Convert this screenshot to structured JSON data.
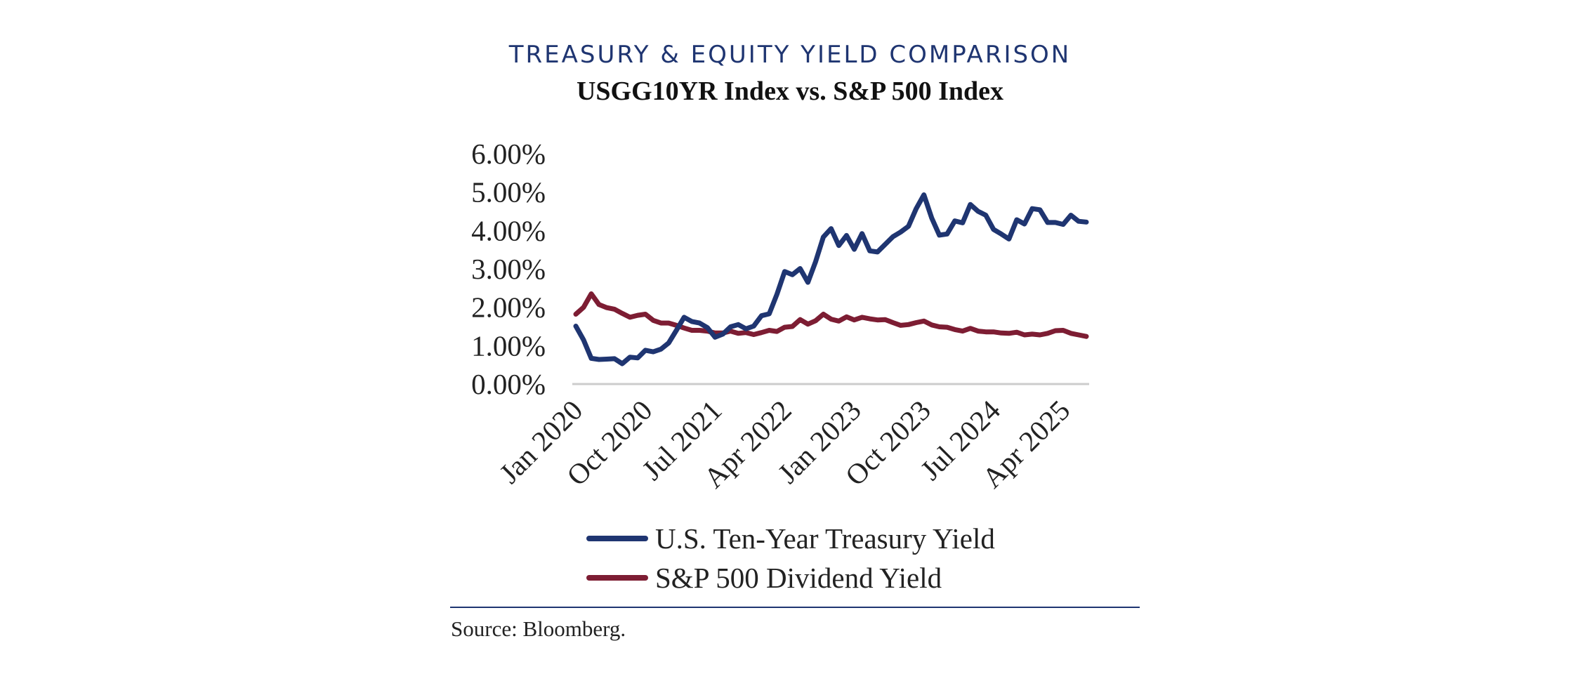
{
  "title": "TREASURY & EQUITY YIELD COMPARISON",
  "subtitle": "USGG10YR Index vs. S&P 500 Index",
  "source": "Source: Bloomberg.",
  "colors": {
    "treasury": "#1f3571",
    "dividend": "#7d1d33",
    "rule": "#1f3571",
    "axis": "#cccccc"
  },
  "chart_data": {
    "type": "line",
    "title": "TREASURY & EQUITY YIELD COMPARISON",
    "subtitle": "USGG10YR Index vs. S&P 500 Index",
    "xlabel": "",
    "ylabel": "",
    "ylim": [
      0,
      0.06
    ],
    "y_ticks": [
      "0.00%",
      "1.00%",
      "2.00%",
      "3.00%",
      "4.00%",
      "5.00%",
      "6.00%"
    ],
    "x_tick_labels": [
      "Jan 2020",
      "Oct 2020",
      "Jul 2021",
      "Apr 2022",
      "Jan 2023",
      "Oct 2023",
      "Jul 2024",
      "Apr 2025"
    ],
    "x": [
      "2020-01",
      "2020-02",
      "2020-03",
      "2020-04",
      "2020-05",
      "2020-06",
      "2020-07",
      "2020-08",
      "2020-09",
      "2020-10",
      "2020-11",
      "2020-12",
      "2021-01",
      "2021-02",
      "2021-03",
      "2021-04",
      "2021-05",
      "2021-06",
      "2021-07",
      "2021-08",
      "2021-09",
      "2021-10",
      "2021-11",
      "2021-12",
      "2022-01",
      "2022-02",
      "2022-03",
      "2022-04",
      "2022-05",
      "2022-06",
      "2022-07",
      "2022-08",
      "2022-09",
      "2022-10",
      "2022-11",
      "2022-12",
      "2023-01",
      "2023-02",
      "2023-03",
      "2023-04",
      "2023-05",
      "2023-06",
      "2023-07",
      "2023-08",
      "2023-09",
      "2023-10",
      "2023-11",
      "2023-12",
      "2024-01",
      "2024-02",
      "2024-03",
      "2024-04",
      "2024-05",
      "2024-06",
      "2024-07",
      "2024-08",
      "2024-09",
      "2024-10",
      "2024-11",
      "2024-12",
      "2025-01",
      "2025-02",
      "2025-03",
      "2025-04",
      "2025-05",
      "2025-06",
      "2025-07"
    ],
    "grid": false,
    "legend": "bottom",
    "series": [
      {
        "name": "U.S. Ten-Year Treasury Yield",
        "values": [
          0.0151,
          0.0115,
          0.0067,
          0.0064,
          0.0065,
          0.0066,
          0.0053,
          0.007,
          0.0068,
          0.0088,
          0.0084,
          0.0091,
          0.0107,
          0.014,
          0.0174,
          0.0163,
          0.0159,
          0.0147,
          0.0122,
          0.013,
          0.0149,
          0.0155,
          0.0144,
          0.0151,
          0.0178,
          0.0183,
          0.0234,
          0.0293,
          0.0285,
          0.0301,
          0.0265,
          0.0319,
          0.0383,
          0.0405,
          0.0361,
          0.0387,
          0.0351,
          0.0392,
          0.0347,
          0.0344,
          0.0364,
          0.0384,
          0.0396,
          0.0411,
          0.0457,
          0.0493,
          0.0433,
          0.0388,
          0.0391,
          0.0425,
          0.042,
          0.0468,
          0.045,
          0.044,
          0.0403,
          0.0391,
          0.0378,
          0.0428,
          0.0417,
          0.0457,
          0.0454,
          0.0421,
          0.0421,
          0.0416,
          0.044,
          0.0424,
          0.0422
        ]
      },
      {
        "name": "S&P 500 Dividend Yield",
        "values": [
          0.0182,
          0.02,
          0.0235,
          0.0207,
          0.0199,
          0.0195,
          0.0184,
          0.0174,
          0.0179,
          0.0182,
          0.0166,
          0.0159,
          0.0159,
          0.0153,
          0.0146,
          0.014,
          0.014,
          0.0138,
          0.0133,
          0.0133,
          0.0138,
          0.0132,
          0.0134,
          0.0129,
          0.0134,
          0.014,
          0.0137,
          0.0148,
          0.015,
          0.0168,
          0.0156,
          0.0165,
          0.0182,
          0.0169,
          0.0164,
          0.0175,
          0.0167,
          0.0174,
          0.017,
          0.0167,
          0.0168,
          0.016,
          0.0153,
          0.0155,
          0.016,
          0.0164,
          0.0154,
          0.0149,
          0.0148,
          0.0142,
          0.0138,
          0.0145,
          0.0138,
          0.0136,
          0.0136,
          0.0133,
          0.0132,
          0.0135,
          0.0128,
          0.013,
          0.0128,
          0.0132,
          0.0139,
          0.014,
          0.0132,
          0.0128,
          0.0124
        ]
      }
    ]
  }
}
